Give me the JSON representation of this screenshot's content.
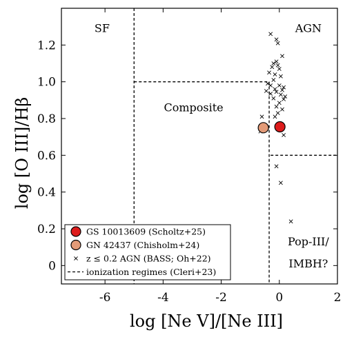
{
  "chart_data": {
    "type": "scatter",
    "xlabel": "log [Ne V]/[Ne III]",
    "ylabel": "log [O III]/Hβ",
    "xlim": [
      -7.5,
      2.0
    ],
    "ylim": [
      -0.1,
      1.4
    ],
    "xticks": [
      -6,
      -4,
      -2,
      0,
      2
    ],
    "yticks": [
      0,
      0.2,
      0.4,
      0.6,
      0.8,
      1.0,
      1.2
    ],
    "xtick_labels": [
      "-6",
      "-4",
      "-2",
      "0",
      "2"
    ],
    "ytick_labels": [
      "0",
      "0.2",
      "0.4",
      "0.6",
      "0.8",
      "1.0",
      "1.2"
    ],
    "grid": false,
    "legend_position": "bottom-left",
    "region_labels": [
      {
        "text": "SF",
        "x": -6.1,
        "y": 1.27
      },
      {
        "text": "AGN",
        "x": 1.0,
        "y": 1.27
      },
      {
        "text": "Composite",
        "x": -2.95,
        "y": 0.84
      },
      {
        "text": "Pop-III/",
        "x": 1.0,
        "y": 0.11
      },
      {
        "text": "IMBH?",
        "x": 1.0,
        "y": -0.01
      }
    ],
    "series": [
      {
        "name": "GS 10013609 (Scholtz+25)",
        "marker": "circle",
        "color": "#dd1c1c",
        "points": [
          [
            0.02,
            0.755
          ]
        ]
      },
      {
        "name": "GN 42437 (Chisholm+24)",
        "marker": "circle",
        "color": "#e39b78",
        "points": [
          [
            -0.55,
            0.75
          ]
        ]
      },
      {
        "name": "z ≤ 0.2 AGN (BASS; Oh+22)",
        "marker": "x",
        "color": "#000000",
        "points": [
          [
            -0.3,
            1.26
          ],
          [
            -0.1,
            1.23
          ],
          [
            -0.05,
            1.21
          ],
          [
            0.1,
            1.14
          ],
          [
            -0.2,
            1.1
          ],
          [
            -0.25,
            1.08
          ],
          [
            -0.1,
            1.11
          ],
          [
            -0.05,
            1.09
          ],
          [
            0.0,
            1.07
          ],
          [
            -0.35,
            1.05
          ],
          [
            -0.15,
            1.04
          ],
          [
            0.05,
            1.03
          ],
          [
            -0.2,
            1.01
          ],
          [
            -0.4,
            0.99
          ],
          [
            -0.3,
            0.98
          ],
          [
            0.0,
            0.98
          ],
          [
            0.15,
            0.97
          ],
          [
            -0.15,
            0.96
          ],
          [
            0.1,
            0.955
          ],
          [
            -0.45,
            0.95
          ],
          [
            -0.1,
            0.945
          ],
          [
            -0.3,
            0.935
          ],
          [
            0.05,
            0.93
          ],
          [
            0.2,
            0.92
          ],
          [
            -0.2,
            0.91
          ],
          [
            0.15,
            0.905
          ],
          [
            0.0,
            0.885
          ],
          [
            -0.1,
            0.865
          ],
          [
            0.1,
            0.85
          ],
          [
            -0.05,
            0.83
          ],
          [
            -0.15,
            0.81
          ],
          [
            -0.6,
            0.81
          ],
          [
            -0.65,
            0.73
          ],
          [
            0.15,
            0.71
          ],
          [
            -0.1,
            0.54
          ],
          [
            0.05,
            0.45
          ],
          [
            0.4,
            0.24
          ]
        ]
      }
    ],
    "boundaries": {
      "name": "ionization regimes (Cleri+23)",
      "style": "dashed",
      "segments": [
        [
          [
            -5.0,
            1.4
          ],
          [
            -5.0,
            -0.1
          ]
        ],
        [
          [
            -5.0,
            1.0
          ],
          [
            -0.35,
            1.0
          ]
        ],
        [
          [
            -0.35,
            1.0
          ],
          [
            -0.35,
            -0.1
          ]
        ],
        [
          [
            -0.3,
            0.6
          ],
          [
            2.0,
            0.6
          ]
        ]
      ]
    }
  }
}
